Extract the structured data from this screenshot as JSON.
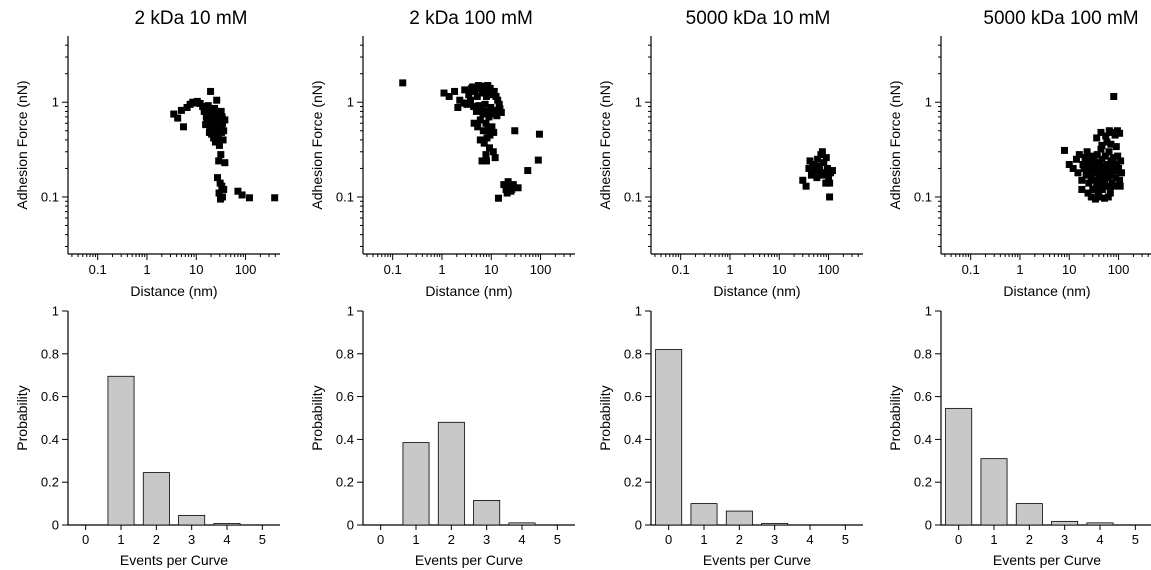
{
  "chart_data": [
    {
      "type": "scatter",
      "title": "2 kDa 10 mM",
      "xlabel": "Distance (nm)",
      "ylabel": "Adhesion Force (nN)",
      "xscale": "log",
      "yscale": "log",
      "xlim": [
        0.025,
        500
      ],
      "ylim": [
        0.025,
        5
      ],
      "xticks": [
        0.1,
        1,
        10,
        100
      ],
      "xtick_labels": [
        "0.1",
        "1",
        "10",
        "100"
      ],
      "yticks": [
        0.1,
        1
      ],
      "ytick_labels": [
        "0.1",
        "1"
      ],
      "marker": "square",
      "color": "#000000",
      "points": [
        [
          3.5,
          0.75
        ],
        [
          4.2,
          0.68
        ],
        [
          5.0,
          0.82
        ],
        [
          5.5,
          0.55
        ],
        [
          6.5,
          0.88
        ],
        [
          7.5,
          0.95
        ],
        [
          8.5,
          1.0
        ],
        [
          9.5,
          0.98
        ],
        [
          10.5,
          1.02
        ],
        [
          12.0,
          0.97
        ],
        [
          13.5,
          0.9
        ],
        [
          14.5,
          0.8
        ],
        [
          16.0,
          0.7
        ],
        [
          17.0,
          0.62
        ],
        [
          18.0,
          0.78
        ],
        [
          19.0,
          0.55
        ],
        [
          20.0,
          0.68
        ],
        [
          21.0,
          0.85
        ],
        [
          22.0,
          0.6
        ],
        [
          23.0,
          0.72
        ],
        [
          24.0,
          0.5
        ],
        [
          25.0,
          0.65
        ],
        [
          26.0,
          0.58
        ],
        [
          27.0,
          0.75
        ],
        [
          28.0,
          0.45
        ],
        [
          29.0,
          0.62
        ],
        [
          30.0,
          0.68
        ],
        [
          31.0,
          0.52
        ],
        [
          32.0,
          0.8
        ],
        [
          33.0,
          0.57
        ],
        [
          34.0,
          0.6
        ],
        [
          36.0,
          0.5
        ],
        [
          38.0,
          0.65
        ],
        [
          22.5,
          0.42
        ],
        [
          24.5,
          0.38
        ],
        [
          26.5,
          0.4
        ],
        [
          29.5,
          0.35
        ],
        [
          32.5,
          0.48
        ],
        [
          19.5,
          1.3
        ],
        [
          26.0,
          1.05
        ],
        [
          17.5,
          0.92
        ],
        [
          35.0,
          0.4
        ],
        [
          31.5,
          0.28
        ],
        [
          28.5,
          0.24
        ],
        [
          38.0,
          0.23
        ],
        [
          27.0,
          0.16
        ],
        [
          30.5,
          0.14
        ],
        [
          33.0,
          0.13
        ],
        [
          36.0,
          0.12
        ],
        [
          29.0,
          0.11
        ],
        [
          31.0,
          0.095
        ],
        [
          34.0,
          0.1
        ],
        [
          70.0,
          0.115
        ],
        [
          85.0,
          0.105
        ],
        [
          120.0,
          0.098
        ],
        [
          390.0,
          0.098
        ],
        [
          15.5,
          0.58
        ],
        [
          18.5,
          0.48
        ],
        [
          21.5,
          0.52
        ],
        [
          25.5,
          0.55
        ],
        [
          23.5,
          0.86
        ],
        [
          20.5,
          0.46
        ],
        [
          27.5,
          0.5
        ],
        [
          16.5,
          0.65
        ],
        [
          33.5,
          0.7
        ]
      ]
    },
    {
      "type": "scatter",
      "title": "2 kDa 100 mM",
      "xlabel": "Distance (nm)",
      "ylabel": "Adhesion Force (nN)",
      "xscale": "log",
      "yscale": "log",
      "xlim": [
        0.025,
        500
      ],
      "ylim": [
        0.025,
        5
      ],
      "xticks": [
        0.1,
        1,
        10,
        100
      ],
      "xtick_labels": [
        "0.1",
        "1",
        "10",
        "100"
      ],
      "yticks": [
        0.1,
        1
      ],
      "ytick_labels": [
        "0.1",
        "1"
      ],
      "marker": "square",
      "color": "#000000",
      "points": [
        [
          0.16,
          1.6
        ],
        [
          1.1,
          1.25
        ],
        [
          1.4,
          1.15
        ],
        [
          1.8,
          1.3
        ],
        [
          2.3,
          1.05
        ],
        [
          2.9,
          1.35
        ],
        [
          3.5,
          1.2
        ],
        [
          4.0,
          1.4
        ],
        [
          4.6,
          1.3
        ],
        [
          5.2,
          1.15
        ],
        [
          5.9,
          1.4
        ],
        [
          6.5,
          1.25
        ],
        [
          7.2,
          1.35
        ],
        [
          8.0,
          1.15
        ],
        [
          8.8,
          1.3
        ],
        [
          9.5,
          1.4
        ],
        [
          10.5,
          1.2
        ],
        [
          11.5,
          1.3
        ],
        [
          12.5,
          1.15
        ],
        [
          13.5,
          1.05
        ],
        [
          14.5,
          0.95
        ],
        [
          3.2,
          0.95
        ],
        [
          3.8,
          1.05
        ],
        [
          4.4,
          0.9
        ],
        [
          5.0,
          0.8
        ],
        [
          5.6,
          0.92
        ],
        [
          6.2,
          0.85
        ],
        [
          6.8,
          0.75
        ],
        [
          7.5,
          0.95
        ],
        [
          8.2,
          0.8
        ],
        [
          9.0,
          0.7
        ],
        [
          9.8,
          0.88
        ],
        [
          10.8,
          0.75
        ],
        [
          12.0,
          0.82
        ],
        [
          13.0,
          0.72
        ],
        [
          15.0,
          0.85
        ],
        [
          16.0,
          0.78
        ],
        [
          4.5,
          0.6
        ],
        [
          5.3,
          0.55
        ],
        [
          6.0,
          0.65
        ],
        [
          6.9,
          0.5
        ],
        [
          7.8,
          0.6
        ],
        [
          8.6,
          0.52
        ],
        [
          9.4,
          0.45
        ],
        [
          10.3,
          0.55
        ],
        [
          11.2,
          0.48
        ],
        [
          4.2,
          1.45
        ],
        [
          5.5,
          1.5
        ],
        [
          7.0,
          1.48
        ],
        [
          8.5,
          1.5
        ],
        [
          6.0,
          0.4
        ],
        [
          7.2,
          0.37
        ],
        [
          8.2,
          0.42
        ],
        [
          9.2,
          0.33
        ],
        [
          7.8,
          0.28
        ],
        [
          11.0,
          0.3
        ],
        [
          6.5,
          0.24
        ],
        [
          8.0,
          0.24
        ],
        [
          12.0,
          0.26
        ],
        [
          30.0,
          0.5
        ],
        [
          95.0,
          0.46
        ],
        [
          90.0,
          0.245
        ],
        [
          55.0,
          0.19
        ],
        [
          18.0,
          0.135
        ],
        [
          20.0,
          0.12
        ],
        [
          22.0,
          0.145
        ],
        [
          24.0,
          0.13
        ],
        [
          26.0,
          0.12
        ],
        [
          28.0,
          0.135
        ],
        [
          21.0,
          0.11
        ],
        [
          25.0,
          0.115
        ],
        [
          35.0,
          0.125
        ],
        [
          14.0,
          0.097
        ],
        [
          2.8,
          0.98
        ],
        [
          2.1,
          0.88
        ]
      ]
    },
    {
      "type": "scatter",
      "title": "5000 kDa 10 mM",
      "xlabel": "Distance (nm)",
      "ylabel": "Adhesion Force (nN)",
      "xscale": "log",
      "yscale": "log",
      "xlim": [
        0.025,
        500
      ],
      "ylim": [
        0.025,
        5
      ],
      "xticks": [
        0.1,
        1,
        10,
        100
      ],
      "xtick_labels": [
        "0.1",
        "1",
        "10",
        "100"
      ],
      "yticks": [
        0.1,
        1
      ],
      "ytick_labels": [
        "0.1",
        "1"
      ],
      "marker": "square",
      "color": "#000000",
      "points": [
        [
          30.0,
          0.15
        ],
        [
          35.0,
          0.13
        ],
        [
          40.0,
          0.2
        ],
        [
          45.0,
          0.17
        ],
        [
          50.0,
          0.22
        ],
        [
          55.0,
          0.19
        ],
        [
          60.0,
          0.25
        ],
        [
          65.0,
          0.21
        ],
        [
          70.0,
          0.28
        ],
        [
          75.0,
          0.3
        ],
        [
          80.0,
          0.23
        ],
        [
          85.0,
          0.18
        ],
        [
          90.0,
          0.26
        ],
        [
          95.0,
          0.2
        ],
        [
          100.0,
          0.16
        ],
        [
          105.0,
          0.14
        ],
        [
          110.0,
          0.18
        ],
        [
          120.0,
          0.19
        ],
        [
          42.0,
          0.24
        ],
        [
          58.0,
          0.16
        ],
        [
          72.0,
          0.17
        ],
        [
          88.0,
          0.14
        ],
        [
          105.0,
          0.1
        ],
        [
          48.0,
          0.21
        ],
        [
          66.0,
          0.19
        ]
      ]
    },
    {
      "type": "scatter",
      "title": "5000 kDa 100 mM",
      "xlabel": "Distance (nm)",
      "ylabel": "Adhesion Force (nN)",
      "xscale": "log",
      "yscale": "log",
      "xlim": [
        0.025,
        500
      ],
      "ylim": [
        0.025,
        5
      ],
      "xticks": [
        0.1,
        1,
        10,
        100
      ],
      "xtick_labels": [
        "0.1",
        "1",
        "10",
        "100"
      ],
      "yticks": [
        0.1,
        1
      ],
      "ytick_labels": [
        "0.1",
        "1"
      ],
      "marker": "square",
      "color": "#000000",
      "points": [
        [
          8.0,
          0.31
        ],
        [
          10.0,
          0.22
        ],
        [
          12.0,
          0.2
        ],
        [
          14.0,
          0.25
        ],
        [
          15.0,
          0.18
        ],
        [
          16.0,
          0.28
        ],
        [
          18.0,
          0.15
        ],
        [
          19.0,
          0.22
        ],
        [
          20.0,
          0.2
        ],
        [
          21.0,
          0.26
        ],
        [
          22.0,
          0.17
        ],
        [
          23.0,
          0.3
        ],
        [
          24.0,
          0.19
        ],
        [
          25.0,
          0.14
        ],
        [
          26.0,
          0.23
        ],
        [
          27.0,
          0.21
        ],
        [
          28.0,
          0.16
        ],
        [
          29.0,
          0.27
        ],
        [
          30.0,
          0.12
        ],
        [
          31.0,
          0.2
        ],
        [
          32.0,
          0.24
        ],
        [
          33.0,
          0.18
        ],
        [
          34.0,
          0.15
        ],
        [
          35.0,
          0.22
        ],
        [
          36.0,
          0.13
        ],
        [
          37.0,
          0.28
        ],
        [
          38.0,
          0.19
        ],
        [
          39.0,
          0.11
        ],
        [
          40.0,
          0.17
        ],
        [
          41.0,
          0.23
        ],
        [
          42.0,
          0.14
        ],
        [
          43.0,
          0.2
        ],
        [
          44.0,
          0.32
        ],
        [
          45.0,
          0.16
        ],
        [
          46.0,
          0.25
        ],
        [
          47.0,
          0.12
        ],
        [
          48.0,
          0.19
        ],
        [
          50.0,
          0.21
        ],
        [
          52.0,
          0.15
        ],
        [
          54.0,
          0.27
        ],
        [
          56.0,
          0.18
        ],
        [
          58.0,
          0.13
        ],
        [
          60.0,
          0.22
        ],
        [
          62.0,
          0.16
        ],
        [
          64.0,
          0.3
        ],
        [
          66.0,
          0.19
        ],
        [
          68.0,
          0.11
        ],
        [
          70.0,
          0.24
        ],
        [
          72.0,
          0.17
        ],
        [
          74.0,
          0.14
        ],
        [
          76.0,
          0.21
        ],
        [
          78.0,
          0.26
        ],
        [
          80.0,
          0.13
        ],
        [
          84.0,
          0.19
        ],
        [
          88.0,
          0.16
        ],
        [
          92.0,
          0.22
        ],
        [
          96.0,
          0.27
        ],
        [
          100.0,
          0.2
        ],
        [
          105.0,
          0.15
        ],
        [
          110.0,
          0.24
        ],
        [
          28.0,
          0.1
        ],
        [
          34.0,
          0.095
        ],
        [
          40.0,
          0.1
        ],
        [
          52.0,
          0.097
        ],
        [
          62.0,
          0.1
        ],
        [
          36.0,
          0.42
        ],
        [
          44.0,
          0.48
        ],
        [
          55.0,
          0.44
        ],
        [
          65.0,
          0.5
        ],
        [
          75.0,
          0.48
        ],
        [
          85.0,
          0.45
        ],
        [
          95.0,
          0.5
        ],
        [
          105.0,
          0.47
        ],
        [
          80.0,
          1.15
        ],
        [
          46.0,
          0.35
        ],
        [
          58.0,
          0.38
        ],
        [
          70.0,
          0.36
        ],
        [
          90.0,
          0.34
        ],
        [
          18.0,
          0.12
        ],
        [
          24.0,
          0.11
        ],
        [
          115.0,
          0.18
        ],
        [
          108.0,
          0.13
        ]
      ]
    },
    {
      "type": "bar",
      "xlabel": "Events per Curve",
      "ylabel": "Probability",
      "categories": [
        "0",
        "1",
        "2",
        "3",
        "4",
        "5"
      ],
      "values": [
        0.0,
        0.695,
        0.245,
        0.045,
        0.007,
        0.0
      ],
      "ylim": [
        0,
        1
      ],
      "yticks": [
        0,
        0.2,
        0.4,
        0.6,
        0.8,
        1
      ],
      "ytick_labels": [
        "0",
        "0.2",
        "0.4",
        "0.6",
        "0.8",
        "1"
      ],
      "bar_color": "#c8c8c8"
    },
    {
      "type": "bar",
      "xlabel": "Events per Curve",
      "ylabel": "Probability",
      "categories": [
        "0",
        "1",
        "2",
        "3",
        "4",
        "5"
      ],
      "values": [
        0.0,
        0.385,
        0.48,
        0.115,
        0.01,
        0.0
      ],
      "ylim": [
        0,
        1
      ],
      "yticks": [
        0,
        0.2,
        0.4,
        0.6,
        0.8,
        1
      ],
      "ytick_labels": [
        "0",
        "0.2",
        "0.4",
        "0.6",
        "0.8",
        "1"
      ],
      "bar_color": "#c8c8c8"
    },
    {
      "type": "bar",
      "xlabel": "Events per Curve",
      "ylabel": "Probability",
      "categories": [
        "0",
        "1",
        "2",
        "3",
        "4",
        "5"
      ],
      "values": [
        0.82,
        0.1,
        0.065,
        0.007,
        0.0,
        0.0
      ],
      "ylim": [
        0,
        1
      ],
      "yticks": [
        0,
        0.2,
        0.4,
        0.6,
        0.8,
        1
      ],
      "ytick_labels": [
        "0",
        "0.2",
        "0.4",
        "0.6",
        "0.8",
        "1"
      ],
      "bar_color": "#c8c8c8"
    },
    {
      "type": "bar",
      "xlabel": "Events per Curve",
      "ylabel": "Probability",
      "categories": [
        "0",
        "1",
        "2",
        "3",
        "4",
        "5"
      ],
      "values": [
        0.545,
        0.31,
        0.1,
        0.017,
        0.01,
        0.0
      ],
      "ylim": [
        0,
        1
      ],
      "yticks": [
        0,
        0.2,
        0.4,
        0.6,
        0.8,
        1
      ],
      "ytick_labels": [
        "0",
        "0.2",
        "0.4",
        "0.6",
        "0.8",
        "1"
      ],
      "bar_color": "#c8c8c8"
    }
  ]
}
